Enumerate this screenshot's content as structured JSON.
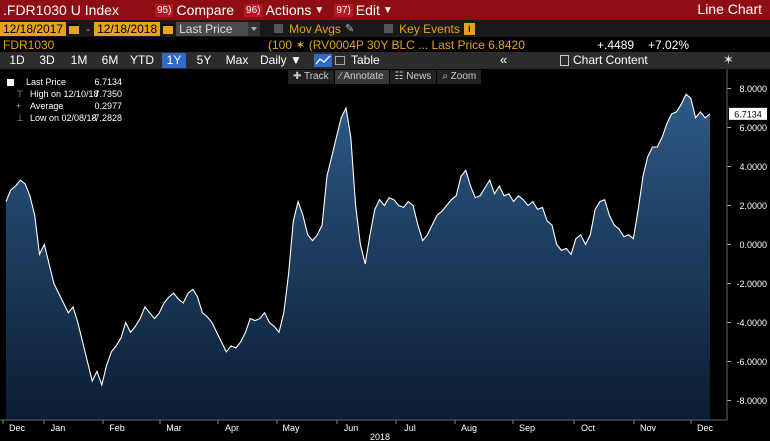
{
  "topbar": {
    "ticker": ".FDR1030 U Index",
    "menus": [
      {
        "num": "95)",
        "label": "Compare"
      },
      {
        "num": "96)",
        "label": "Actions",
        "dropdown": true
      },
      {
        "num": "97)",
        "label": "Edit",
        "dropdown": true
      }
    ],
    "view_title": "Line Chart"
  },
  "toolbar": {
    "start_date": "12/18/2017",
    "end_date": "12/18/2018",
    "range_separator": "-",
    "field": "Last Price",
    "mov_avgs": "Mov Avgs",
    "key_events": "Key Events",
    "key_events_badge": "i"
  },
  "security_line": {
    "code": "FDR1030",
    "description": "(100 ✶ (RV0004P 30Y BLC ... Last Price 6.8420",
    "net_change": "+.4489",
    "pct_change": "+7.02%"
  },
  "ranges": {
    "items": [
      "1D",
      "3D",
      "1M",
      "6M",
      "YTD",
      "1Y",
      "5Y",
      "Max"
    ],
    "active": "1Y",
    "frequency": "Daily ▼",
    "table_label": "Table",
    "chevron": "«",
    "chart_content_label": "Chart Content",
    "gear": "✶"
  },
  "tools": [
    "✚ Track",
    "∕ Annotate",
    "☷ News",
    "⌕ Zoom"
  ],
  "tools_active": 1,
  "legend": {
    "rows": [
      {
        "label": "Last Price",
        "value": "6.7134"
      },
      {
        "label": "High on 12/10/18",
        "value": "7.7350"
      },
      {
        "label": "Average",
        "value": "0.2977"
      },
      {
        "label": "Low on 02/08/18",
        "value": "-7.2828"
      }
    ]
  },
  "chart_data": {
    "type": "area",
    "x_label_year": "2018",
    "months": [
      "Dec",
      "Jan",
      "Feb",
      "Mar",
      "Apr",
      "May",
      "Jun",
      "Jul",
      "Aug",
      "Sep",
      "Oct",
      "Nov",
      "Dec"
    ],
    "ylim": [
      -9,
      9
    ],
    "yticks": [
      8,
      6,
      4,
      2,
      0,
      -2,
      -4,
      -6,
      -8
    ],
    "ytick_labels": [
      "8.0000",
      "6.0000",
      "4.0000",
      "2.0000",
      "0.0000",
      "-2.0000",
      "-4.0000",
      "-6.0000",
      "-8.0000"
    ],
    "last_value_label": "6.7134",
    "colors": {
      "line": "#ffffff",
      "fill_top": "#2d5a86",
      "fill_bottom": "#0b1d33",
      "last_badge": "#ffffff"
    },
    "series": [
      {
        "values": [
          2.2,
          2.8,
          3.0,
          3.3,
          3.1,
          2.5,
          1.5,
          -0.5,
          0.0,
          -1.0,
          -2.0,
          -2.5,
          -3.0,
          -3.5,
          -3.2,
          -4.0,
          -5.0,
          -6.0,
          -7.0,
          -6.5,
          -7.2,
          -6.2,
          -5.5,
          -5.2,
          -4.8,
          -4.0,
          -4.5,
          -4.2,
          -3.8,
          -3.2,
          -3.5,
          -3.8,
          -3.5,
          -3.0,
          -2.7,
          -2.5,
          -2.8,
          -3.0,
          -2.5,
          -2.3,
          -2.7,
          -3.5,
          -3.7,
          -4.0,
          -4.5,
          -5.0,
          -5.5,
          -5.2,
          -5.3,
          -5.0,
          -4.5,
          -3.8,
          -3.9,
          -3.8,
          -3.5,
          -4.0,
          -4.2,
          -4.5,
          -3.5,
          -1.5,
          1.2,
          2.2,
          1.5,
          0.5,
          0.2,
          0.5,
          1.0,
          3.5,
          4.5,
          5.5,
          6.5,
          7.0,
          5.5,
          2.0,
          0.0,
          -1.0,
          0.5,
          1.8,
          2.3,
          2.0,
          2.4,
          2.3,
          2.0,
          1.9,
          2.2,
          2.0,
          1.0,
          0.2,
          0.5,
          1.0,
          1.5,
          1.7,
          2.0,
          2.3,
          2.5,
          3.5,
          3.8,
          3.0,
          2.4,
          2.5,
          2.9,
          3.3,
          2.6,
          3.0,
          2.5,
          2.6,
          2.2,
          2.5,
          2.3,
          2.0,
          2.2,
          1.8,
          1.9,
          1.2,
          1.0,
          0.0,
          -0.3,
          -0.2,
          -0.5,
          0.3,
          0.5,
          0.0,
          0.5,
          1.8,
          2.2,
          2.3,
          1.5,
          1.0,
          0.8,
          0.4,
          0.5,
          0.3,
          1.8,
          3.5,
          4.5,
          5.0,
          5.0,
          5.5,
          6.2,
          6.7,
          6.8,
          7.2,
          7.7,
          7.5,
          6.5,
          6.8,
          6.5,
          6.7
        ]
      }
    ]
  }
}
